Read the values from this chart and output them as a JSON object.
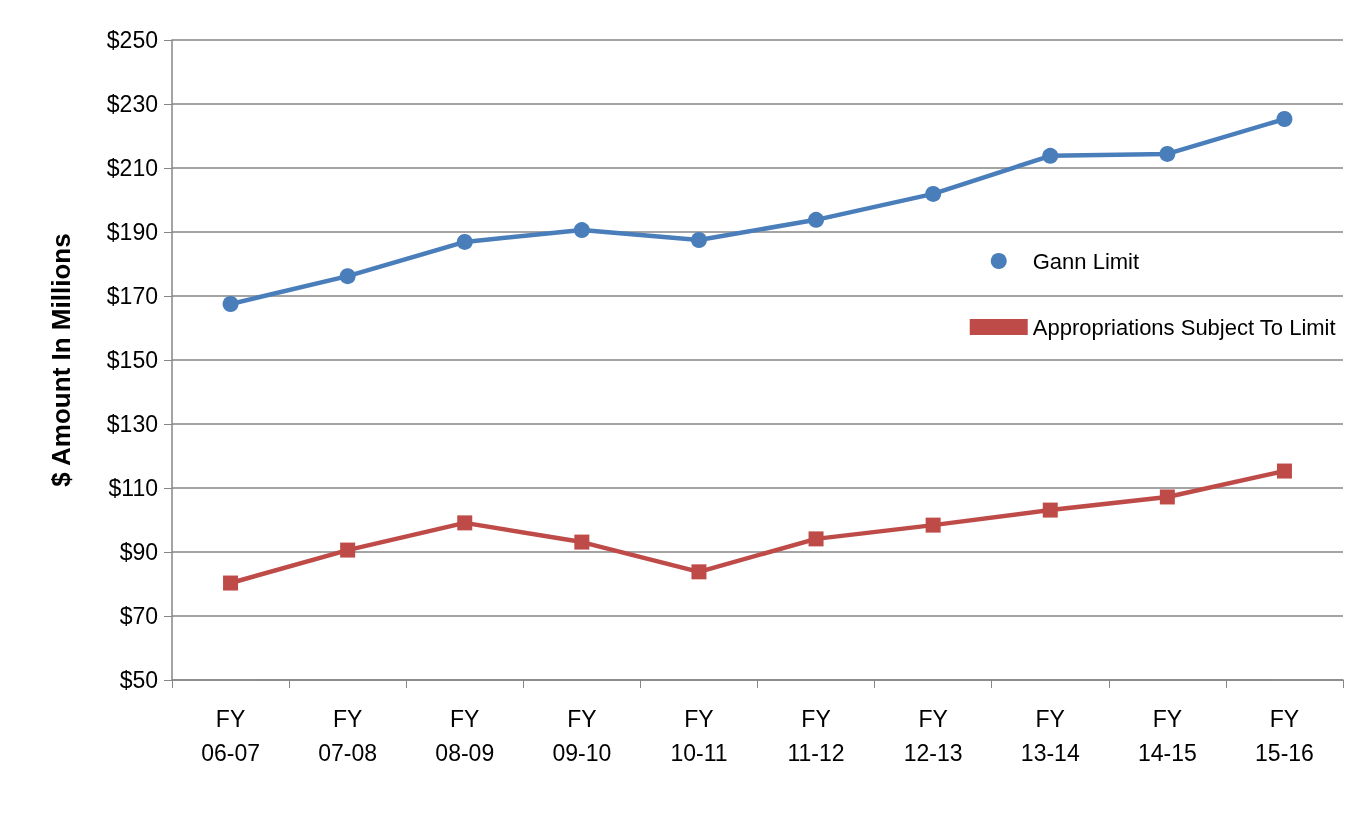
{
  "chart_data": {
    "type": "line",
    "ylabel": "$ Amount In Millions",
    "categories": [
      "FY\n06-07",
      "FY\n07-08",
      "FY\n08-09",
      "FY\n09-10",
      "FY\n10-11",
      "FY\n11-12",
      "FY\n12-13",
      "FY\n13-14",
      "FY\n14-15",
      "FY\n15-16"
    ],
    "series": [
      {
        "name": "Gann Limit",
        "color": "#4a7ebb",
        "marker": "circle",
        "values": [
          167.5,
          176.2,
          186.9,
          190.6,
          187.5,
          193.8,
          201.9,
          213.8,
          214.4,
          225.3
        ]
      },
      {
        "name": "Appropriations Subject To Limit",
        "color": "#be4b48",
        "marker": "square",
        "values": [
          80.3,
          90.6,
          99.1,
          93.1,
          83.8,
          94.1,
          98.4,
          103.1,
          107.2,
          115.3
        ]
      }
    ],
    "ylim": [
      50,
      250
    ],
    "yticks": [
      {
        "value": 50,
        "label": "$50"
      },
      {
        "value": 70,
        "label": "$70"
      },
      {
        "value": 90,
        "label": "$90"
      },
      {
        "value": 110,
        "label": "$110"
      },
      {
        "value": 130,
        "label": "$130"
      },
      {
        "value": 150,
        "label": "$150"
      },
      {
        "value": 170,
        "label": "$170"
      },
      {
        "value": 190,
        "label": "$190"
      },
      {
        "value": 210,
        "label": "$210"
      },
      {
        "value": 230,
        "label": "$230"
      },
      {
        "value": 250,
        "label": "$250"
      }
    ],
    "grid": "y",
    "legend": "right",
    "line_style": "solid"
  }
}
